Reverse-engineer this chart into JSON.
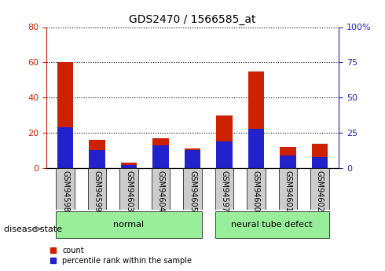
{
  "title": "GDS2470 / 1566585_at",
  "samples": [
    "GSM94598",
    "GSM94599",
    "GSM94603",
    "GSM94604",
    "GSM94605",
    "GSM94597",
    "GSM94600",
    "GSM94601",
    "GSM94602"
  ],
  "count_values": [
    60,
    16,
    3,
    17,
    11,
    30,
    55,
    12,
    14
  ],
  "percentile_values": [
    29,
    13,
    2,
    16,
    13,
    19,
    28,
    9,
    8
  ],
  "left_ylim": [
    0,
    80
  ],
  "left_yticks": [
    0,
    20,
    40,
    60,
    80
  ],
  "right_ylim": [
    0,
    100
  ],
  "right_yticks": [
    0,
    25,
    50,
    75,
    100
  ],
  "right_yticklabels": [
    "0",
    "25",
    "50",
    "75",
    "100%"
  ],
  "bar_color_red": "#cc2200",
  "bar_color_blue": "#2222cc",
  "bar_width": 0.5,
  "disease_groups": [
    {
      "label": "normal",
      "start": 0,
      "end": 5
    },
    {
      "label": "neural tube defect",
      "start": 5,
      "end": 9
    }
  ],
  "disease_state_label": "disease state",
  "legend_items": [
    {
      "label": "count",
      "color": "#cc2200"
    },
    {
      "label": "percentile rank within the sample",
      "color": "#2222cc"
    }
  ],
  "tick_label_bg": "#cccccc",
  "normal_bg": "#99ee99",
  "left_axis_color": "#cc2200",
  "right_axis_color": "#2222bb"
}
